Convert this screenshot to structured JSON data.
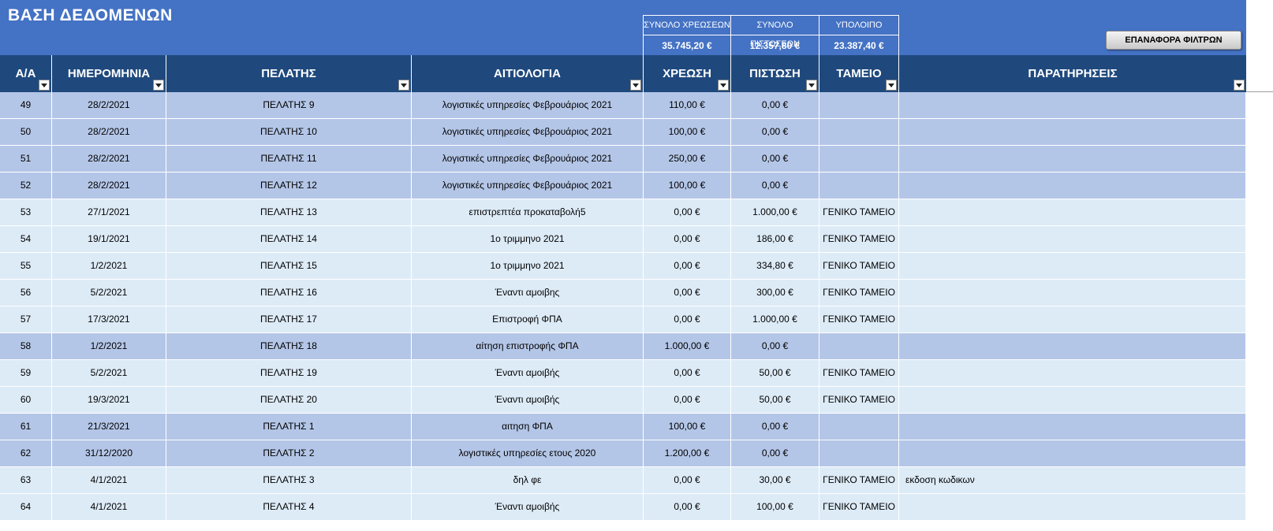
{
  "title": "ΒΑΣΗ ΔΕΔΟΜΕΝΩΝ",
  "summary": {
    "debits_label": "ΣΥΝΟΛΟ ΧΡΕΩΣΕΩΝ",
    "debits_value": "35.745,20 €",
    "credits_label": "ΣΥΝΟΛΟ ΠΙΣΤΩΣΕΩΝ",
    "credits_value": "12.357,80 €",
    "balance_label": "ΥΠΟΛΟΙΠΟ",
    "balance_value": "23.387,40 €"
  },
  "reset_button": "ΕΠΑΝΑΦΟΡΑ ΦΙΛΤΡΩΝ",
  "columns": [
    "Α/Α",
    "ΗΜΕΡΟΜΗΝΙΑ",
    "ΠΕΛΑΤΗΣ",
    "ΑΙΤΙΟΛΟΓΙΑ",
    "ΧΡΕΩΣΗ",
    "ΠΙΣΤΩΣΗ",
    "ΤΑΜΕΙΟ",
    "ΠΑΡΑΤΗΡΗΣΕΙΣ"
  ],
  "rows": [
    {
      "id": "49",
      "date": "28/2/2021",
      "client": "ΠΕΛΑΤΗΣ 9",
      "reason": "λογιστικές υπηρεσίες Φεβρουάριος 2021",
      "debit": "110,00 €",
      "credit": "0,00 €",
      "cash": "",
      "remarks": "",
      "shade": "dark"
    },
    {
      "id": "50",
      "date": "28/2/2021",
      "client": "ΠΕΛΑΤΗΣ 10",
      "reason": "λογιστικές υπηρεσίες Φεβρουάριος 2021",
      "debit": "100,00 €",
      "credit": "0,00 €",
      "cash": "",
      "remarks": "",
      "shade": "dark"
    },
    {
      "id": "51",
      "date": "28/2/2021",
      "client": "ΠΕΛΑΤΗΣ 11",
      "reason": "λογιστικές υπηρεσίες Φεβρουάριος 2021",
      "debit": "250,00 €",
      "credit": "0,00 €",
      "cash": "",
      "remarks": "",
      "shade": "dark"
    },
    {
      "id": "52",
      "date": "28/2/2021",
      "client": "ΠΕΛΑΤΗΣ 12",
      "reason": "λογιστικές υπηρεσίες Φεβρουάριος 2021",
      "debit": "100,00 €",
      "credit": "0,00 €",
      "cash": "",
      "remarks": "",
      "shade": "dark"
    },
    {
      "id": "53",
      "date": "27/1/2021",
      "client": "ΠΕΛΑΤΗΣ 13",
      "reason": "επιστρεπτέα προκαταβολή5",
      "debit": "0,00 €",
      "credit": "1.000,00 €",
      "cash": "ΓΕΝΙΚΟ ΤΑΜΕΙΟ",
      "remarks": "",
      "shade": "light"
    },
    {
      "id": "54",
      "date": "19/1/2021",
      "client": "ΠΕΛΑΤΗΣ 14",
      "reason": "1ο τριμμηνο 2021",
      "debit": "0,00 €",
      "credit": "186,00 €",
      "cash": "ΓΕΝΙΚΟ ΤΑΜΕΙΟ",
      "remarks": "",
      "shade": "light"
    },
    {
      "id": "55",
      "date": "1/2/2021",
      "client": "ΠΕΛΑΤΗΣ 15",
      "reason": "1ο τριμμηνο 2021",
      "debit": "0,00 €",
      "credit": "334,80 €",
      "cash": "ΓΕΝΙΚΟ ΤΑΜΕΙΟ",
      "remarks": "",
      "shade": "light"
    },
    {
      "id": "56",
      "date": "5/2/2021",
      "client": "ΠΕΛΑΤΗΣ 16",
      "reason": "Έναντι αμοιβης",
      "debit": "0,00 €",
      "credit": "300,00 €",
      "cash": "ΓΕΝΙΚΟ ΤΑΜΕΙΟ",
      "remarks": "",
      "shade": "light"
    },
    {
      "id": "57",
      "date": "17/3/2021",
      "client": "ΠΕΛΑΤΗΣ 17",
      "reason": "Επιστροφή ΦΠΑ",
      "debit": "0,00 €",
      "credit": "1.000,00 €",
      "cash": "ΓΕΝΙΚΟ ΤΑΜΕΙΟ",
      "remarks": "",
      "shade": "light"
    },
    {
      "id": "58",
      "date": "1/2/2021",
      "client": "ΠΕΛΑΤΗΣ 18",
      "reason": "αίτηση επιστροφής  ΦΠΑ",
      "debit": "1.000,00 €",
      "credit": "0,00 €",
      "cash": "",
      "remarks": "",
      "shade": "dark"
    },
    {
      "id": "59",
      "date": "5/2/2021",
      "client": "ΠΕΛΑΤΗΣ 19",
      "reason": "Έναντι αμοιβής",
      "debit": "0,00 €",
      "credit": "50,00 €",
      "cash": "ΓΕΝΙΚΟ ΤΑΜΕΙΟ",
      "remarks": "",
      "shade": "light"
    },
    {
      "id": "60",
      "date": "19/3/2021",
      "client": "ΠΕΛΑΤΗΣ 20",
      "reason": "Έναντι αμοιβής",
      "debit": "0,00 €",
      "credit": "50,00 €",
      "cash": "ΓΕΝΙΚΟ ΤΑΜΕΙΟ",
      "remarks": "",
      "shade": "light"
    },
    {
      "id": "61",
      "date": "21/3/2021",
      "client": "ΠΕΛΑΤΗΣ 1",
      "reason": "αιτηση ΦΠΑ",
      "debit": "100,00 €",
      "credit": "0,00 €",
      "cash": "",
      "remarks": "",
      "shade": "dark"
    },
    {
      "id": "62",
      "date": "31/12/2020",
      "client": "ΠΕΛΑΤΗΣ 2",
      "reason": "λογιστικές υπηρεσίες ετους 2020",
      "debit": "1.200,00 €",
      "credit": "0,00 €",
      "cash": "",
      "remarks": "",
      "shade": "dark"
    },
    {
      "id": "63",
      "date": "4/1/2021",
      "client": "ΠΕΛΑΤΗΣ 3",
      "reason": "δηλ φε",
      "debit": "0,00 €",
      "credit": "30,00 €",
      "cash": "ΓΕΝΙΚΟ ΤΑΜΕΙΟ",
      "remarks": "εκδοση κωδικων",
      "shade": "light"
    },
    {
      "id": "64",
      "date": "4/1/2021",
      "client": "ΠΕΛΑΤΗΣ 4",
      "reason": "Έναντι αμοιβής",
      "debit": "0,00 €",
      "credit": "100,00 €",
      "cash": "ΓΕΝΙΚΟ ΤΑΜΕΙΟ",
      "remarks": "",
      "shade": "light"
    }
  ]
}
